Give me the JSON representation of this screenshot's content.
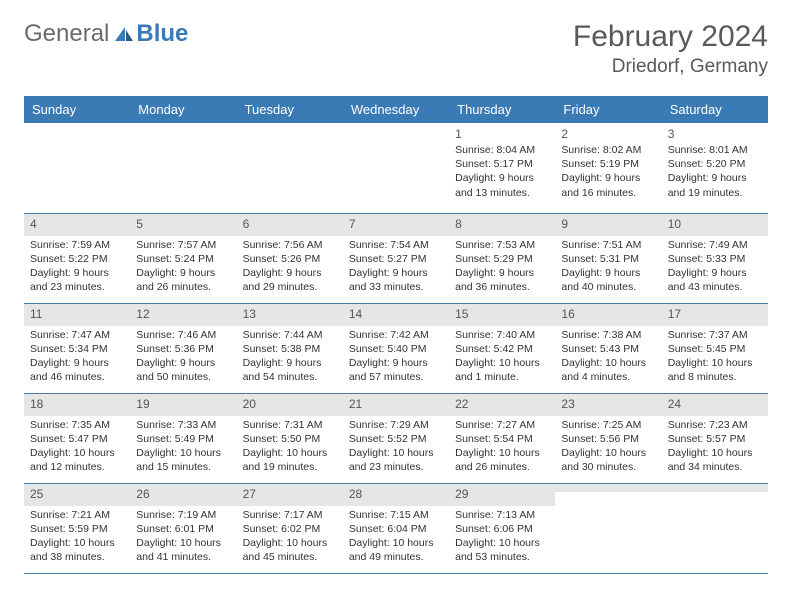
{
  "brand": {
    "part1": "General",
    "part2": "Blue"
  },
  "title": "February 2024",
  "location": "Driedorf, Germany",
  "colors": {
    "header_bg": "#3a7ab5",
    "header_text": "#ffffff",
    "alt_row_bg": "#e6e6e6",
    "border": "#4a7aa8",
    "text": "#333333",
    "title_text": "#595959",
    "logo_gray": "#6a6a6a",
    "logo_blue": "#3a7ab5"
  },
  "typography": {
    "title_fontsize": 30,
    "location_fontsize": 19,
    "dayhead_fontsize": 13,
    "daynum_fontsize": 12,
    "body_fontsize": 10.5
  },
  "day_names": [
    "Sunday",
    "Monday",
    "Tuesday",
    "Wednesday",
    "Thursday",
    "Friday",
    "Saturday"
  ],
  "weeks": [
    {
      "alt": false,
      "days": [
        {
          "num": "",
          "sunrise": "",
          "sunset": "",
          "daylight": ""
        },
        {
          "num": "",
          "sunrise": "",
          "sunset": "",
          "daylight": ""
        },
        {
          "num": "",
          "sunrise": "",
          "sunset": "",
          "daylight": ""
        },
        {
          "num": "",
          "sunrise": "",
          "sunset": "",
          "daylight": ""
        },
        {
          "num": "1",
          "sunrise": "Sunrise: 8:04 AM",
          "sunset": "Sunset: 5:17 PM",
          "daylight": "Daylight: 9 hours and 13 minutes."
        },
        {
          "num": "2",
          "sunrise": "Sunrise: 8:02 AM",
          "sunset": "Sunset: 5:19 PM",
          "daylight": "Daylight: 9 hours and 16 minutes."
        },
        {
          "num": "3",
          "sunrise": "Sunrise: 8:01 AM",
          "sunset": "Sunset: 5:20 PM",
          "daylight": "Daylight: 9 hours and 19 minutes."
        }
      ]
    },
    {
      "alt": true,
      "days": [
        {
          "num": "4",
          "sunrise": "Sunrise: 7:59 AM",
          "sunset": "Sunset: 5:22 PM",
          "daylight": "Daylight: 9 hours and 23 minutes."
        },
        {
          "num": "5",
          "sunrise": "Sunrise: 7:57 AM",
          "sunset": "Sunset: 5:24 PM",
          "daylight": "Daylight: 9 hours and 26 minutes."
        },
        {
          "num": "6",
          "sunrise": "Sunrise: 7:56 AM",
          "sunset": "Sunset: 5:26 PM",
          "daylight": "Daylight: 9 hours and 29 minutes."
        },
        {
          "num": "7",
          "sunrise": "Sunrise: 7:54 AM",
          "sunset": "Sunset: 5:27 PM",
          "daylight": "Daylight: 9 hours and 33 minutes."
        },
        {
          "num": "8",
          "sunrise": "Sunrise: 7:53 AM",
          "sunset": "Sunset: 5:29 PM",
          "daylight": "Daylight: 9 hours and 36 minutes."
        },
        {
          "num": "9",
          "sunrise": "Sunrise: 7:51 AM",
          "sunset": "Sunset: 5:31 PM",
          "daylight": "Daylight: 9 hours and 40 minutes."
        },
        {
          "num": "10",
          "sunrise": "Sunrise: 7:49 AM",
          "sunset": "Sunset: 5:33 PM",
          "daylight": "Daylight: 9 hours and 43 minutes."
        }
      ]
    },
    {
      "alt": true,
      "days": [
        {
          "num": "11",
          "sunrise": "Sunrise: 7:47 AM",
          "sunset": "Sunset: 5:34 PM",
          "daylight": "Daylight: 9 hours and 46 minutes."
        },
        {
          "num": "12",
          "sunrise": "Sunrise: 7:46 AM",
          "sunset": "Sunset: 5:36 PM",
          "daylight": "Daylight: 9 hours and 50 minutes."
        },
        {
          "num": "13",
          "sunrise": "Sunrise: 7:44 AM",
          "sunset": "Sunset: 5:38 PM",
          "daylight": "Daylight: 9 hours and 54 minutes."
        },
        {
          "num": "14",
          "sunrise": "Sunrise: 7:42 AM",
          "sunset": "Sunset: 5:40 PM",
          "daylight": "Daylight: 9 hours and 57 minutes."
        },
        {
          "num": "15",
          "sunrise": "Sunrise: 7:40 AM",
          "sunset": "Sunset: 5:42 PM",
          "daylight": "Daylight: 10 hours and 1 minute."
        },
        {
          "num": "16",
          "sunrise": "Sunrise: 7:38 AM",
          "sunset": "Sunset: 5:43 PM",
          "daylight": "Daylight: 10 hours and 4 minutes."
        },
        {
          "num": "17",
          "sunrise": "Sunrise: 7:37 AM",
          "sunset": "Sunset: 5:45 PM",
          "daylight": "Daylight: 10 hours and 8 minutes."
        }
      ]
    },
    {
      "alt": true,
      "days": [
        {
          "num": "18",
          "sunrise": "Sunrise: 7:35 AM",
          "sunset": "Sunset: 5:47 PM",
          "daylight": "Daylight: 10 hours and 12 minutes."
        },
        {
          "num": "19",
          "sunrise": "Sunrise: 7:33 AM",
          "sunset": "Sunset: 5:49 PM",
          "daylight": "Daylight: 10 hours and 15 minutes."
        },
        {
          "num": "20",
          "sunrise": "Sunrise: 7:31 AM",
          "sunset": "Sunset: 5:50 PM",
          "daylight": "Daylight: 10 hours and 19 minutes."
        },
        {
          "num": "21",
          "sunrise": "Sunrise: 7:29 AM",
          "sunset": "Sunset: 5:52 PM",
          "daylight": "Daylight: 10 hours and 23 minutes."
        },
        {
          "num": "22",
          "sunrise": "Sunrise: 7:27 AM",
          "sunset": "Sunset: 5:54 PM",
          "daylight": "Daylight: 10 hours and 26 minutes."
        },
        {
          "num": "23",
          "sunrise": "Sunrise: 7:25 AM",
          "sunset": "Sunset: 5:56 PM",
          "daylight": "Daylight: 10 hours and 30 minutes."
        },
        {
          "num": "24",
          "sunrise": "Sunrise: 7:23 AM",
          "sunset": "Sunset: 5:57 PM",
          "daylight": "Daylight: 10 hours and 34 minutes."
        }
      ]
    },
    {
      "alt": true,
      "days": [
        {
          "num": "25",
          "sunrise": "Sunrise: 7:21 AM",
          "sunset": "Sunset: 5:59 PM",
          "daylight": "Daylight: 10 hours and 38 minutes."
        },
        {
          "num": "26",
          "sunrise": "Sunrise: 7:19 AM",
          "sunset": "Sunset: 6:01 PM",
          "daylight": "Daylight: 10 hours and 41 minutes."
        },
        {
          "num": "27",
          "sunrise": "Sunrise: 7:17 AM",
          "sunset": "Sunset: 6:02 PM",
          "daylight": "Daylight: 10 hours and 45 minutes."
        },
        {
          "num": "28",
          "sunrise": "Sunrise: 7:15 AM",
          "sunset": "Sunset: 6:04 PM",
          "daylight": "Daylight: 10 hours and 49 minutes."
        },
        {
          "num": "29",
          "sunrise": "Sunrise: 7:13 AM",
          "sunset": "Sunset: 6:06 PM",
          "daylight": "Daylight: 10 hours and 53 minutes."
        },
        {
          "num": "",
          "sunrise": "",
          "sunset": "",
          "daylight": ""
        },
        {
          "num": "",
          "sunrise": "",
          "sunset": "",
          "daylight": ""
        }
      ]
    }
  ]
}
